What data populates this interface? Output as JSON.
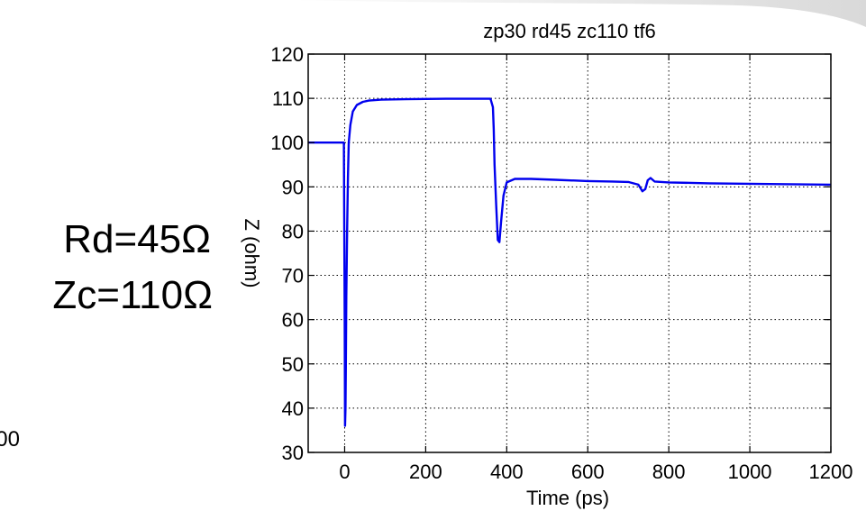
{
  "side_labels": {
    "rd": "Rd=45Ω",
    "zc": "Zc=110Ω",
    "stray": "00"
  },
  "colors": {
    "line": "#0000ee",
    "axes": "#000000",
    "grid": "#000000"
  },
  "chart_data": {
    "type": "line",
    "title": "zp30 rd45 zc110 tf6",
    "xlabel": "Time (ps)",
    "ylabel": "Z (ohm)",
    "xlim": [
      -90,
      1200
    ],
    "ylim": [
      30,
      120
    ],
    "xticks": [
      0,
      200,
      400,
      600,
      800,
      1000,
      1200
    ],
    "yticks": [
      30,
      40,
      50,
      60,
      70,
      80,
      90,
      100,
      110,
      120
    ],
    "grid": true,
    "series": [
      {
        "x": [
          -90,
          -2,
          0,
          1,
          2,
          3,
          4,
          6,
          8,
          10,
          14,
          20,
          30,
          45,
          60,
          90,
          150,
          250,
          360,
          366,
          368,
          370,
          374,
          378,
          382,
          386,
          392,
          400,
          420,
          460,
          520,
          600,
          660,
          700,
          725,
          735,
          742,
          748,
          755,
          765,
          800,
          900,
          1000,
          1100,
          1200
        ],
        "y": [
          100,
          100,
          60,
          36,
          40,
          50,
          65,
          80,
          92,
          100,
          104,
          107,
          108.5,
          109.2,
          109.5,
          109.7,
          109.8,
          109.9,
          109.9,
          108,
          103,
          95,
          86,
          78,
          77.5,
          82,
          88,
          91,
          91.8,
          91.8,
          91.6,
          91.3,
          91.2,
          91.1,
          90.5,
          89,
          89.5,
          91.5,
          92,
          91.2,
          91,
          90.8,
          90.7,
          90.6,
          90.5
        ]
      }
    ]
  }
}
